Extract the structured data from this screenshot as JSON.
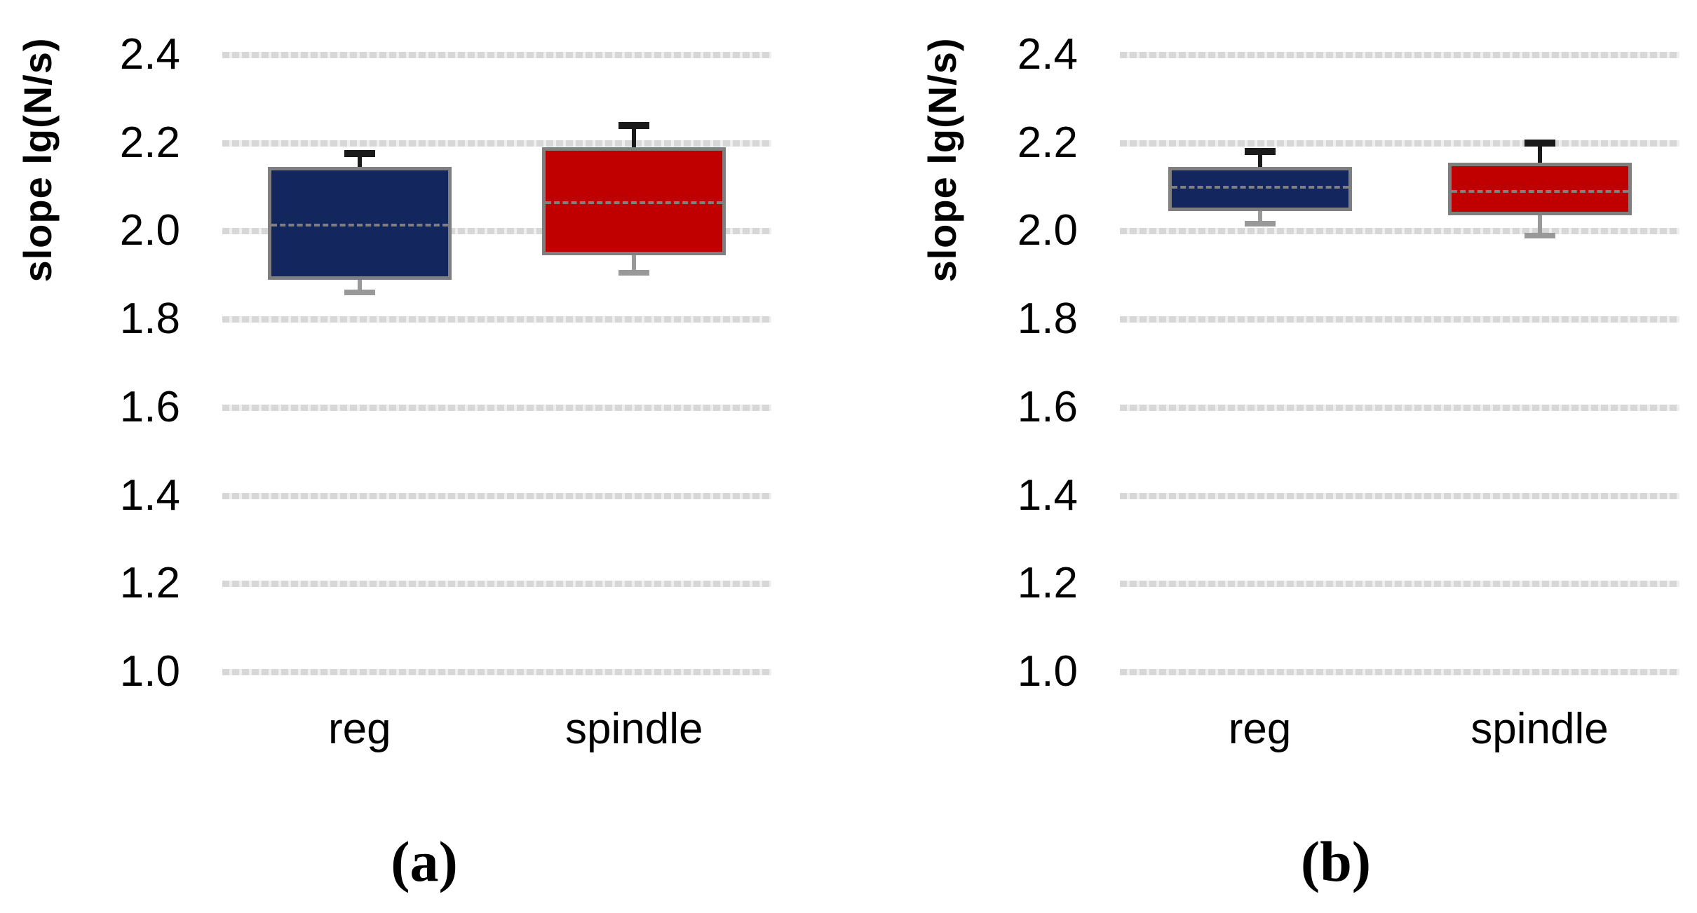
{
  "figure": {
    "background": "#ffffff",
    "text_color": "#000000"
  },
  "style": {
    "box_border_color": "#7f7f7f",
    "median_color": "#7f7f7f",
    "whisker_upper_color": "#1a1a1a",
    "whisker_lower_color": "#999999",
    "gridline_color": "#d7d7d7"
  },
  "chart_data": [
    {
      "type": "box",
      "caption": "(a)",
      "title": "",
      "xlabel": "",
      "ylabel": "slope lg(N/s)",
      "categories": [
        "reg",
        "spindle"
      ],
      "ylim": [
        1.0,
        2.4
      ],
      "ytick_step": 0.2,
      "ytick_labels": [
        "2.4",
        "2.2",
        "2.0",
        "1.8",
        "1.6",
        "1.4",
        "1.2",
        "1.0"
      ],
      "grid": true,
      "legend": "none",
      "series": [
        {
          "name": "reg",
          "color": "#13265e",
          "min": 1.86,
          "q1": 1.89,
          "median": 2.013,
          "q3": 2.145,
          "max": 2.175
        },
        {
          "name": "spindle",
          "color": "#c00000",
          "min": 1.905,
          "q1": 1.945,
          "median": 2.065,
          "q3": 2.19,
          "max": 2.24
        }
      ]
    },
    {
      "type": "box",
      "caption": "(b)",
      "title": "",
      "xlabel": "",
      "ylabel": "slope lg(N/s)",
      "categories": [
        "reg",
        "spindle"
      ],
      "ylim": [
        1.0,
        2.4
      ],
      "ytick_step": 0.2,
      "ytick_labels": [
        "2.4",
        "2.2",
        "2.0",
        "1.8",
        "1.6",
        "1.4",
        "1.2",
        "1.0"
      ],
      "grid": true,
      "legend": "none",
      "series": [
        {
          "name": "reg",
          "color": "#13265e",
          "min": 2.016,
          "q1": 2.045,
          "median": 2.1,
          "q3": 2.145,
          "max": 2.18
        },
        {
          "name": "spindle",
          "color": "#c00000",
          "min": 1.99,
          "q1": 2.035,
          "median": 2.09,
          "q3": 2.155,
          "max": 2.2
        }
      ]
    }
  ]
}
